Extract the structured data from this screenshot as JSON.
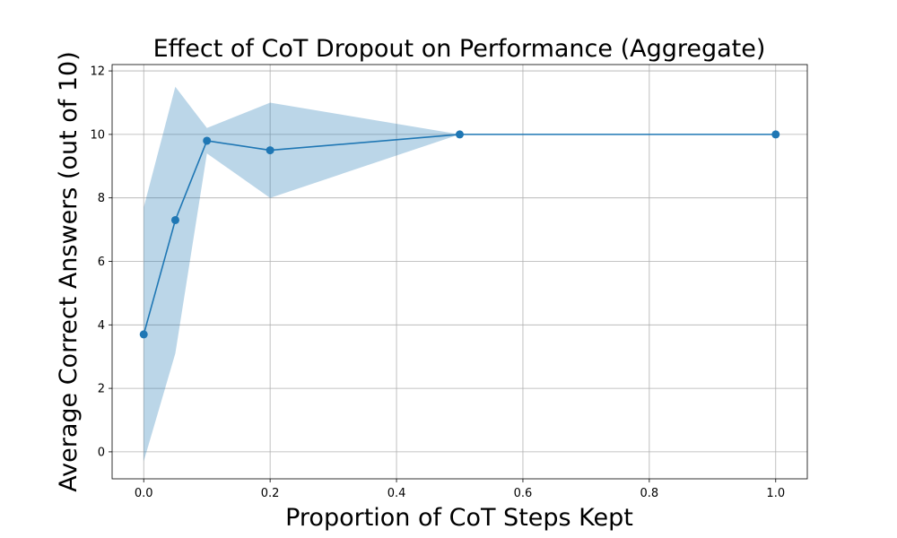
{
  "chart_data": {
    "type": "line",
    "title": "Effect of CoT Dropout on Performance (Aggregate)",
    "xlabel": "Proportion of CoT Steps Kept",
    "ylabel": "Average Correct Answers (out of 10)",
    "xlim": [
      -0.05,
      1.05
    ],
    "ylim": [
      -0.85,
      12.2
    ],
    "xticks": [
      0.0,
      0.2,
      0.4,
      0.6,
      0.8,
      1.0
    ],
    "xtick_labels": [
      "0.0",
      "0.2",
      "0.4",
      "0.6",
      "0.8",
      "1.0"
    ],
    "yticks": [
      0,
      2,
      4,
      6,
      8,
      10,
      12
    ],
    "ytick_labels": [
      "0",
      "2",
      "4",
      "6",
      "8",
      "10",
      "12"
    ],
    "grid": true,
    "series": [
      {
        "x": [
          0.0,
          0.05,
          0.1,
          0.2,
          0.5,
          1.0
        ],
        "y": [
          3.7,
          7.3,
          9.8,
          9.5,
          10.0,
          10.0
        ],
        "band_lower": [
          -0.3,
          3.1,
          9.4,
          8.0,
          10.0,
          10.0
        ],
        "band_upper": [
          7.7,
          11.5,
          10.2,
          11.0,
          10.0,
          10.0
        ],
        "color": "#1f77b4",
        "band_color": "#1f77b4",
        "marker": "circle"
      }
    ]
  }
}
